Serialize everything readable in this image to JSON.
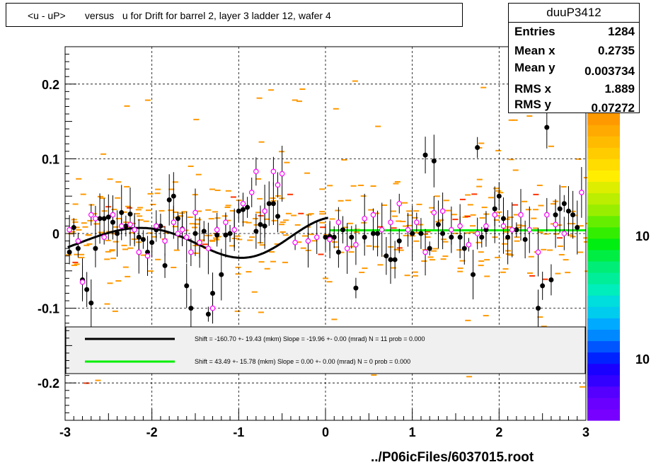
{
  "title": "<u - uP>       versus   u for Drift for barrel 2, layer 3 ladder 12, wafer 4",
  "stats": {
    "name": "duuP3412",
    "rows": [
      {
        "key": "Entries",
        "value": "1284"
      },
      {
        "key": "Mean x",
        "value": "0.2735"
      },
      {
        "key": "Mean y",
        "value": "0.003734"
      },
      {
        "key": "RMS x",
        "value": "1.889"
      },
      {
        "key": "RMS y",
        "value": "0.07272"
      }
    ]
  },
  "footer": "../P06icFiles/6037015.root",
  "colors": {
    "histogram": "#ff9900",
    "black_fit": "#000000",
    "green_fit": "#00ee00",
    "open_markers": "#ff00ff"
  },
  "chart_data": {
    "type": "scatter",
    "xlim": [
      -3,
      3
    ],
    "ylim": [
      -0.25,
      0.25
    ],
    "x_ticks": [
      "-3",
      "-2",
      "-1",
      "0",
      "1",
      "2",
      "3"
    ],
    "y_ticks": [
      "0.2",
      "0.1",
      "0",
      "-0.1",
      "-0.2"
    ],
    "grid": true,
    "palette_labels": [
      "10",
      "10"
    ],
    "legend": [
      {
        "color": "#000000",
        "text": "Shift =  -160.70 +- 19.43 (mkm) Slope =   -19.96 +- 0.00 (mrad)  N = 11 prob = 0.000"
      },
      {
        "color": "#00ee00",
        "text": "Shift =    43.49 +- 15.78 (mkm) Slope =     0.00 +- 0.00 (mrad)  N = 0 prob = 0.000"
      }
    ],
    "series": [
      {
        "marker": "filled-circle",
        "points": [
          [
            -2.95,
            -0.025
          ],
          [
            -2.9,
            0.008
          ],
          [
            -2.85,
            -0.02
          ],
          [
            -2.8,
            -0.062
          ],
          [
            -2.75,
            -0.075
          ],
          [
            -2.7,
            -0.093
          ],
          [
            -2.65,
            -0.02
          ],
          [
            -2.6,
            0.02
          ],
          [
            -2.55,
            0.02
          ],
          [
            -2.5,
            0.022
          ],
          [
            -2.45,
            0.015
          ],
          [
            -2.4,
            0.0
          ],
          [
            -2.35,
            0.028
          ],
          [
            -2.3,
            0.01
          ],
          [
            -2.25,
            0.026
          ],
          [
            -2.2,
            0.005
          ],
          [
            -2.15,
            -0.005
          ],
          [
            -2.1,
            -0.008
          ],
          [
            -2.05,
            -0.025
          ],
          [
            -2.0,
            -0.012
          ],
          [
            -1.95,
            0.005
          ],
          [
            -1.9,
            0.01
          ],
          [
            -1.85,
            -0.043
          ],
          [
            -1.8,
            0.045
          ],
          [
            -1.75,
            0.05
          ],
          [
            -1.7,
            0.02
          ],
          [
            -1.65,
            0.006
          ],
          [
            -1.6,
            -0.07
          ],
          [
            -1.55,
            -0.1
          ],
          [
            -1.5,
            0.0
          ],
          [
            -1.45,
            -0.012
          ],
          [
            -1.4,
            0.003
          ],
          [
            -1.35,
            -0.108
          ],
          [
            -1.3,
            -0.08
          ],
          [
            -1.25,
            -0.002
          ],
          [
            -1.2,
            -0.055
          ],
          [
            -1.15,
            -0.002
          ],
          [
            -1.1,
            0.0
          ],
          [
            -1.05,
            0.005
          ],
          [
            -1.0,
            0.03
          ],
          [
            -0.95,
            0.032
          ],
          [
            -0.9,
            0.035
          ],
          [
            -0.8,
            0.003
          ],
          [
            -0.75,
            0.012
          ],
          [
            -0.7,
            0.01
          ],
          [
            -0.65,
            0.04
          ],
          [
            -0.6,
            0.04
          ],
          [
            -0.55,
            0.023
          ],
          [
            0.0,
            -0.005
          ],
          [
            0.05,
            -0.004
          ],
          [
            0.1,
            -0.005
          ],
          [
            0.15,
            -0.025
          ],
          [
            0.2,
            0.005
          ],
          [
            0.3,
            -0.005
          ],
          [
            0.35,
            -0.073
          ],
          [
            0.45,
            -0.005
          ],
          [
            0.55,
            0.0
          ],
          [
            0.6,
            0.0
          ],
          [
            0.7,
            -0.03
          ],
          [
            0.75,
            -0.035
          ],
          [
            0.8,
            -0.035
          ],
          [
            0.85,
            -0.01
          ],
          [
            0.95,
            0.005
          ],
          [
            1.0,
            0.0
          ],
          [
            1.1,
            0.0
          ],
          [
            1.15,
            0.105
          ],
          [
            1.2,
            -0.02
          ],
          [
            1.25,
            0.097
          ],
          [
            1.3,
            0.012
          ],
          [
            1.35,
            0.0
          ],
          [
            1.45,
            -0.005
          ],
          [
            1.55,
            -0.005
          ],
          [
            1.6,
            -0.02
          ],
          [
            1.7,
            -0.055
          ],
          [
            1.75,
            0.115
          ],
          [
            1.8,
            -0.005
          ],
          [
            1.85,
            0.005
          ],
          [
            1.95,
            0.033
          ],
          [
            2.0,
            0.05
          ],
          [
            2.05,
            0.02
          ],
          [
            2.1,
            -0.005
          ],
          [
            2.2,
            0.005
          ],
          [
            2.3,
            -0.008
          ],
          [
            2.45,
            -0.1
          ],
          [
            2.5,
            -0.07
          ],
          [
            2.55,
            0.142
          ],
          [
            2.6,
            -0.062
          ],
          [
            2.65,
            0.025
          ],
          [
            2.7,
            0.033
          ],
          [
            2.75,
            0.04
          ],
          [
            2.8,
            0.03
          ],
          [
            2.85,
            0.025
          ],
          [
            2.9,
            0.008
          ]
        ]
      },
      {
        "marker": "open-circle",
        "points": [
          [
            -2.95,
            0.005
          ],
          [
            -2.85,
            -0.01
          ],
          [
            -2.8,
            -0.065
          ],
          [
            -2.7,
            0.025
          ],
          [
            -2.65,
            0.02
          ],
          [
            -2.55,
            -0.005
          ],
          [
            -2.45,
            0.025
          ],
          [
            -2.35,
            0.01
          ],
          [
            -2.25,
            0.012
          ],
          [
            -2.2,
            0.005
          ],
          [
            -2.15,
            -0.025
          ],
          [
            -2.05,
            -0.03
          ],
          [
            -1.95,
            0.01
          ],
          [
            -1.85,
            -0.01
          ],
          [
            -1.75,
            0.015
          ],
          [
            -1.7,
            0.0
          ],
          [
            -1.65,
            0.005
          ],
          [
            -1.6,
            -0.005
          ],
          [
            -1.55,
            -0.025
          ],
          [
            -1.5,
            0.028
          ],
          [
            -1.45,
            -0.012
          ],
          [
            -1.35,
            -0.02
          ],
          [
            -1.3,
            -0.1
          ],
          [
            -1.25,
            0.005
          ],
          [
            -1.15,
            0.015
          ],
          [
            -1.05,
            0.005
          ],
          [
            -0.95,
            0.04
          ],
          [
            -0.85,
            0.055
          ],
          [
            -0.8,
            0.083
          ],
          [
            -0.7,
            0.03
          ],
          [
            -0.6,
            0.083
          ],
          [
            -0.55,
            0.065
          ],
          [
            -0.5,
            0.08
          ],
          [
            -0.35,
            -0.012
          ],
          [
            -0.2,
            -0.01
          ],
          [
            -0.1,
            -0.005
          ],
          [
            0.05,
            -0.008
          ],
          [
            0.15,
            0.015
          ],
          [
            0.25,
            -0.02
          ],
          [
            0.35,
            -0.015
          ],
          [
            0.45,
            0.02
          ],
          [
            0.55,
            0.025
          ],
          [
            0.65,
            0.005
          ],
          [
            0.75,
            0.015
          ],
          [
            0.85,
            0.04
          ],
          [
            0.95,
            0.005
          ],
          [
            1.05,
            0.015
          ],
          [
            1.15,
            -0.025
          ],
          [
            1.25,
            0.028
          ],
          [
            1.35,
            0.03
          ],
          [
            1.45,
            0.005
          ],
          [
            1.55,
            0.01
          ],
          [
            1.65,
            -0.015
          ],
          [
            1.75,
            0.0
          ],
          [
            1.85,
            0.01
          ],
          [
            1.95,
            0.025
          ],
          [
            2.05,
            0.01
          ],
          [
            2.15,
            0.005
          ],
          [
            2.25,
            0.025
          ],
          [
            2.35,
            0.005
          ],
          [
            2.45,
            -0.025
          ],
          [
            2.55,
            0.025
          ],
          [
            2.65,
            0.012
          ],
          [
            2.75,
            0.0
          ],
          [
            2.95,
            0.055
          ]
        ]
      }
    ]
  }
}
